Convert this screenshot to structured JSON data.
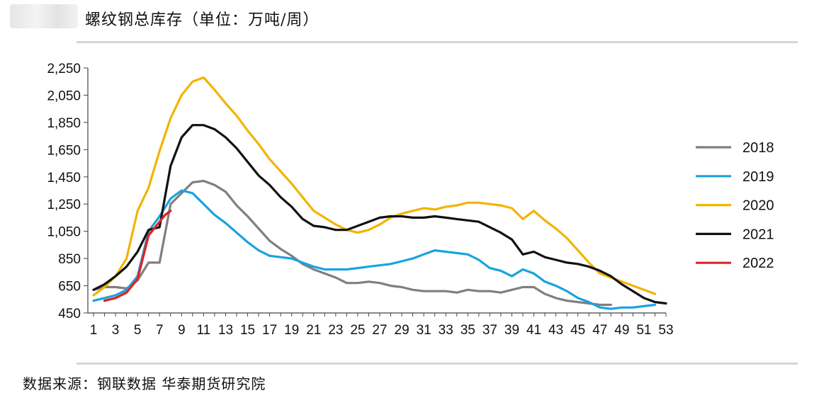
{
  "header": {
    "title": "螺纹钢总库存（单位：万吨/周）"
  },
  "footer": {
    "source": "数据来源：钢联数据 华泰期货研究院"
  },
  "chart_data": {
    "type": "line",
    "title": "螺纹钢总库存（单位：万吨/周）",
    "xlabel": "",
    "ylabel": "",
    "xlim": [
      1,
      53
    ],
    "ylim": [
      450,
      2250
    ],
    "y_ticks": [
      "450",
      "650",
      "850",
      "1,050",
      "1,250",
      "1,450",
      "1,650",
      "1,850",
      "2,050",
      "2,250"
    ],
    "x_ticks": [
      "1",
      "3",
      "5",
      "7",
      "9",
      "11",
      "13",
      "15",
      "17",
      "19",
      "21",
      "23",
      "25",
      "27",
      "29",
      "31",
      "33",
      "35",
      "37",
      "39",
      "41",
      "43",
      "45",
      "47",
      "49",
      "51",
      "53"
    ],
    "grid": false,
    "legend_position": "right",
    "series": [
      {
        "name": "2018",
        "color": "#7f7f7f",
        "x": [
          1,
          2,
          3,
          4,
          5,
          6,
          7,
          8,
          9,
          10,
          11,
          12,
          13,
          14,
          15,
          16,
          17,
          18,
          19,
          20,
          21,
          22,
          23,
          24,
          25,
          26,
          27,
          28,
          29,
          30,
          31,
          32,
          33,
          34,
          35,
          36,
          37,
          38,
          39,
          40,
          41,
          42,
          43,
          44,
          45,
          46,
          47,
          48
        ],
        "values": [
          620,
          640,
          640,
          630,
          690,
          820,
          820,
          1250,
          1330,
          1410,
          1420,
          1390,
          1340,
          1240,
          1160,
          1070,
          980,
          920,
          870,
          810,
          770,
          740,
          710,
          670,
          670,
          680,
          670,
          650,
          640,
          620,
          610,
          610,
          610,
          600,
          620,
          610,
          610,
          600,
          620,
          640,
          640,
          590,
          560,
          540,
          530,
          520,
          510,
          510
        ]
      },
      {
        "name": "2019",
        "color": "#1aa3df",
        "x": [
          1,
          2,
          3,
          4,
          5,
          6,
          7,
          8,
          9,
          10,
          11,
          12,
          13,
          14,
          15,
          16,
          17,
          18,
          19,
          20,
          21,
          22,
          23,
          24,
          25,
          26,
          27,
          28,
          29,
          30,
          31,
          32,
          33,
          34,
          35,
          36,
          37,
          38,
          39,
          40,
          41,
          42,
          43,
          44,
          45,
          46,
          47,
          48,
          49,
          50,
          51,
          52
        ],
        "values": [
          540,
          560,
          580,
          620,
          720,
          1050,
          1160,
          1290,
          1350,
          1330,
          1250,
          1170,
          1110,
          1040,
          970,
          910,
          870,
          860,
          850,
          820,
          790,
          770,
          770,
          770,
          780,
          790,
          800,
          810,
          830,
          850,
          880,
          910,
          900,
          890,
          880,
          840,
          780,
          760,
          720,
          770,
          740,
          680,
          650,
          610,
          560,
          530,
          490,
          480,
          490,
          490,
          500,
          510
        ]
      },
      {
        "name": "2020",
        "color": "#f2b400",
        "x": [
          1,
          2,
          3,
          4,
          5,
          6,
          7,
          8,
          9,
          10,
          11,
          12,
          13,
          14,
          15,
          16,
          17,
          18,
          19,
          20,
          21,
          22,
          23,
          24,
          25,
          26,
          27,
          28,
          29,
          30,
          31,
          32,
          33,
          34,
          35,
          36,
          37,
          38,
          39,
          40,
          41,
          42,
          43,
          44,
          45,
          46,
          47,
          48,
          49,
          50,
          51,
          52
        ],
        "values": [
          580,
          640,
          720,
          850,
          1200,
          1370,
          1640,
          1880,
          2050,
          2150,
          2180,
          2090,
          1990,
          1900,
          1790,
          1690,
          1580,
          1490,
          1400,
          1300,
          1200,
          1150,
          1100,
          1060,
          1040,
          1060,
          1100,
          1150,
          1180,
          1200,
          1220,
          1210,
          1230,
          1240,
          1260,
          1260,
          1250,
          1240,
          1220,
          1140,
          1200,
          1130,
          1070,
          1000,
          910,
          820,
          740,
          710,
          680,
          650,
          620,
          590
        ]
      },
      {
        "name": "2021",
        "color": "#111111",
        "x": [
          1,
          2,
          3,
          4,
          5,
          6,
          7,
          8,
          9,
          10,
          11,
          12,
          13,
          14,
          15,
          16,
          17,
          18,
          19,
          20,
          21,
          22,
          23,
          24,
          25,
          26,
          27,
          28,
          29,
          30,
          31,
          32,
          33,
          34,
          35,
          36,
          37,
          38,
          39,
          40,
          41,
          42,
          43,
          44,
          45,
          46,
          47,
          48,
          49,
          50,
          51,
          52,
          53
        ],
        "values": [
          620,
          660,
          720,
          790,
          900,
          1060,
          1080,
          1530,
          1740,
          1830,
          1830,
          1800,
          1740,
          1660,
          1560,
          1460,
          1390,
          1300,
          1230,
          1140,
          1090,
          1080,
          1060,
          1060,
          1090,
          1120,
          1150,
          1160,
          1160,
          1150,
          1150,
          1160,
          1150,
          1140,
          1130,
          1120,
          1080,
          1040,
          990,
          880,
          900,
          860,
          840,
          820,
          810,
          790,
          760,
          720,
          660,
          610,
          560,
          530,
          520
        ]
      },
      {
        "name": "2022",
        "color": "#d9262c",
        "x": [
          2,
          3,
          4,
          5,
          6,
          7,
          7.5,
          8
        ],
        "values": [
          540,
          560,
          600,
          700,
          1020,
          1120,
          1170,
          1200
        ]
      }
    ]
  }
}
